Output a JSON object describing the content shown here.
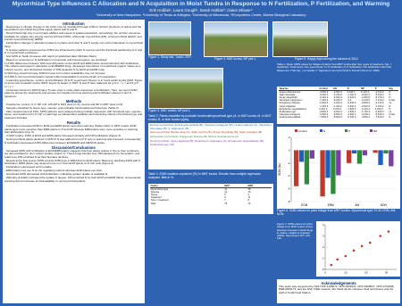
{
  "header": {
    "title": "Mycorrhizal Type Influences C Allocation and N Acquisition in Moist Tundra in Response to N Fertilization, P Fertilization, and Warming",
    "authors": "Erik Hobbie¹, Laura Gough², Sarah Hobbie³, Gaius Shaver⁴",
    "affiliations": "¹University of New Hampshire, ²University of Texas at Arlington, ³University of Minnesota, ⁴Ecosystems Center, Marine Biological Laboratory"
  },
  "intro": {
    "heading": "Introduction",
    "paragraphs": [
      "· Responses to climate change in the Arctic may be mediated through shifts in nutrient dynamics of plants and the associated mycorrhizal fungi that supply plants with N and P.",
      "· Mycorrhizal fungi vary in enzymatic abilities and extent of spatial exploration; accordingly, the nutrient resources available for uptake vary among nonmycorrhizal (NON), arbuscular mycorrhizal (AM), ectomycorrhizal (ECM), and ericoid mycorrhizal fungi (ERM).",
      "· Fertilization changes C allocation patterns in plants and often N and P supply can control allocation to mycorrhizal fungi.",
      "· N isotope patterns (expressed as δ15N) are influenced by plant N sources and the fractional partitioning of C and N in mycorrhizal symbioses.",
      "· Soil δ15N at Toolik increases with depth (unpublished data; Michelle Mack).",
      "· Based on responses to N fertilization in temperate and boreal regions, we predicted:",
      "1) δ15N differences between NON and AM plants versus ECM and ERM plants should diminish with fertilization. This reflects decreased C allocation to ECM/ERM fungi, decreased importance of recalcitrant organic matter as a nutrient source, and diminished transfer of 15N-depleted N by ECM and ERM fungi.",
      "2) Warming should increase SOM turnover but nutrient availability may not increase.",
      "3) δ15N in nonmycorrhizal plants should reflect bioavailable N and the depth of N acquisition.",
      "· A warming-greenhouse, control, and fertilization (N & P) experiment (Figure 1) in moist acidic tundra (MAT; Figure 2) and moist nonacidic tundra (MNT; Figure 3) began in 1997; N and P were added at 10 g N m⁻² y⁻¹ and 5 g P m⁻² y⁻¹.",
      "· A biomass harvest in 2000 (Figure 5) was used to study plant responses to fertilization. Here, we report δ15N patterns across the treatments and species for insights into how warming and fertilization altered C and N dynamics."
    ]
  },
  "methods": {
    "heading": "Methods",
    "paragraphs": [
      "· Treatments: control, N, P, NP, GH, GHxNP in MAT plots (n=3), control and NP in MNT plots (n=4).",
      "· Samples classified by tissue type, species, and probable functional/mycorrhizal type (Table 2).",
      "· After measurement at KSU, δ15N patterns were analyzed using multiple regression with functional type, species, tissue, and treatment (N, P, NP, or warming) as independent variables and interactive effects of functional type and treatment included."
    ]
  },
  "results": {
    "heading": "Results",
    "paragraphs": [
      "· Fertilization increased δ15N in ECM and ERM plants more than warming (Tables 2&3). In MNT tundra, ECM plants were more sensitive than ERM plants to P and NP whereas ERM plants were more sensitive to warming than ECM plants (Fig. 6).",
      "· In MAT tundra, δ15N of ECM and ERM plants increased similarly with NP fertilization (Figure 6).",
      "· Nonmycorrhizal plants declined in δ15N if N was added but not if P only or warming was imposed; consequently, N fertilization decreased δ15N differences between ECM/ERM and AM/NON plants."
    ]
  },
  "discussion": {
    "heading": "Discussion/Conclusions",
    "paragraphs": [
      "· Increased δ15N with fertilization in ECM/ERM plants suggests that host plants reduce C flux to their symbionts (as demonstrated in prior carbon studies, Figure 7). These fungi transfer less 15N-depleted N to host plants, and retain less 15N-enriched N as their biomass declines.",
      "· Results imply that source δ15N controls δ15N less in ERM than in ECM plants. Based on declining δ15N with P fertilization, ERM plants may depend more on C than ECM plants on P-rich soils (Figure 6).",
      "· Fertilization suppressed soil N uptake.",
      "· ERM plants may use N as the regulating nutrient whereas ECM plants use both.",
      "· Graminoid δ15N decreased with fertilization, indicating greater uptake of available N.",
      "· Warming probably increased the uptake of deeper, 15N-enriched N by both ECM and ERM plants; consequently warming did not increase its bioavailability in nonmycorrhizal plants."
    ]
  },
  "photos": {
    "fig1": "Figure 1. Study site, Toolik LTER.",
    "fig2": "Figure 4. MAT tundra, NP plot 1.",
    "fig3": "Figure 3. MNT tundra, NP plot 1.",
    "fig5": "Figure 5. Happy days during the harvest of 2012."
  },
  "table1": {
    "caption": "Table 1. Mean δ15N values for foliage of plants from MNT tundra after four years of treatment. Sig. = significant. Treatments: GH, greenhouse; N, N fertilization; P, P fertilization; NP, fertilization with both. Means are ± SE (‰), n is usually 3. ᵃappeared nonmycorrhizal in Dorrall (Tiss et al. 1996).",
    "columns": [
      "Species",
      "Control",
      "GH",
      "N",
      "NP",
      "P",
      "Sig."
    ],
    "rows": [
      [
        "Grass inflorescence",
        "-4.5±0.2",
        "-3.9±0.4",
        "0.6±0.7",
        "0.1±0.4",
        "-4.1±0.3",
        "N"
      ],
      [
        "Salix reticulata",
        "-5.2±0.3",
        "-4.4±0.6",
        "-1.1±0.5",
        "-0.9±0.3",
        "-5.0±0.2",
        "N"
      ],
      [
        "Dryas integrifolia",
        "-6.1±0.2",
        "-5.6±0.3",
        "-2.4±0.4",
        "-1.8±0.6",
        "-5.7±0.4",
        "N"
      ],
      [
        "Vaccinium uliginosum",
        "-7.4±0.4",
        "-6.2±0.3",
        "-4.0",
        "-3.1±0.5",
        "-7.1±0.2",
        "N,GH"
      ],
      [
        "Polygonum bistorta",
        "-2.0±0.5",
        "-2.2±0.4",
        "-0.5±0.3",
        "-0.8±0.2",
        "-2.1±0.6",
        "ns"
      ],
      [
        "Carex bigelowii",
        "-1.1±0.3",
        "-1.4±0.2",
        "-2.6±0.4",
        "-2.9±0.3",
        "-1.2±0.2",
        "N"
      ],
      [
        "Eriophorum angustifolium",
        "0.4±0.2",
        "0.2±0.3",
        "-1.9±0.5",
        "-2.1±0.4",
        "0.3±0.2",
        "N"
      ],
      [
        "Pedicularis spp.",
        "-0.8±0.3",
        "-0.6±0.4",
        "-1.5±0.2",
        "-1.7±0.3",
        "-0.9±0.2",
        "ns"
      ],
      [
        "Cassiope tetragona",
        "-6.9±0.2",
        "-5.8±0.3",
        "-4.6±0.4",
        "-4.2±0.2",
        "-6.5±0.3",
        "N,GH"
      ],
      [
        "Andromeda polifolia",
        "-7.8±0.3",
        "-6.9±0.2",
        "-5.1±0.6",
        "-4.8±0.4",
        "-7.5±0.3",
        "N"
      ]
    ]
  },
  "table2": {
    "caption": "Table 2. Plants classified by probable functional/mycorrhizal type (A, in MAT tundra; M, in MNT tundra; B, in both tundra types).",
    "groups": [
      {
        "text": "Ericoid mycorrhizal: Andromeda polifolia (B), Cassiope tetragona (M), Ledum palustre (A), Vaccinium vitis-idaea (B), V. uliginosum (B)",
        "color": "#1f5fbf"
      },
      {
        "text": "Ectomycorrhizal: Betula nana (A), Salix pulchra (B), Dryas integrifolia (M), Salix reticulata (M)",
        "color": "#c0392b"
      },
      {
        "text": "Arbuscular mycorrhizal: Polygonum bistorta (B), Rubus chamaemorus (A)",
        "color": "#2e8b3a"
      },
      {
        "text": "Nonmycorrhizal: Carex bigelowii (B), Eriophorum vaginatum (A), Eriophorum angustifolium (B), Pedicularis spp. (M)",
        "color": "#7a3fa0"
      }
    ]
  },
  "table3": {
    "caption": "Table 3. δ15N variation explained (R²) in MNT tundra. Results from multiple regression analyses, little in %.",
    "columns": [
      "Factor",
      "MAT",
      "MNT"
    ],
    "rows": [
      [
        "Mycorrhizal type",
        "41",
        "38"
      ],
      [
        "Species",
        "12",
        "15"
      ],
      [
        "Tissue",
        "6",
        "4"
      ],
      [
        "Treatment",
        "9",
        "11"
      ],
      [
        "Type × treatment",
        "7",
        "8"
      ],
      [
        "Total",
        "75",
        "76"
      ]
    ]
  },
  "fig6": {
    "caption": "Figure 6. δ15N values for plant foliage from MNT tundra. Mycorrhizal type: ECM, ERM, AM, NON.",
    "ylabel": "δ15N (‰)",
    "categories": [
      "ECM",
      "ERM",
      "AM",
      "NON"
    ],
    "series": [
      {
        "name": "Control",
        "color": "#c0392b",
        "values": [
          -5.6,
          -7.2,
          -2.0,
          -0.4
        ]
      },
      {
        "name": "N",
        "color": "#1f5fbf",
        "values": [
          -1.8,
          -4.3,
          -0.5,
          -2.3
        ]
      },
      {
        "name": "P",
        "color": "#2e8b3a",
        "values": [
          -5.3,
          -6.8,
          -2.1,
          -0.5
        ]
      },
      {
        "name": "NP",
        "color": "#7a3fa0",
        "values": [
          -1.3,
          -3.9,
          -0.8,
          -2.5
        ]
      }
    ],
    "ylim": [
      -8,
      2
    ],
    "yticks": [
      -8,
      -6,
      -4,
      -2,
      0,
      2
    ]
  },
  "fig7": {
    "caption": "Figure 7. δ15N values for plant foliage from MAT tundra versus absolute increase in ECM fungi in culture, Hobbie & Colpaert (2003). New Phytol 157: 115-126.",
    "x": [
      3,
      6,
      10,
      14,
      18,
      22,
      27,
      31
    ],
    "y": [
      0.4,
      0.9,
      1.2,
      1.7,
      2.1,
      2.4,
      3.0,
      3.4
    ],
    "color": "#c0392b",
    "xlim": [
      0,
      35
    ],
    "ylim": [
      0,
      4
    ],
    "xticks": [
      0,
      10,
      20,
      30
    ],
    "yticks": [
      0,
      1,
      2,
      3,
      4
    ]
  },
  "acknowledgements": {
    "heading": "Acknowledgements",
    "text": "This study was supported by NSF OPP-1108074, OPP-0909441, OPP-0909507, OPP-0732288, DEB-0823173, and the NSF LTER network. We thank all the volunteer field technicians and the staff of Toolik Field Station."
  }
}
